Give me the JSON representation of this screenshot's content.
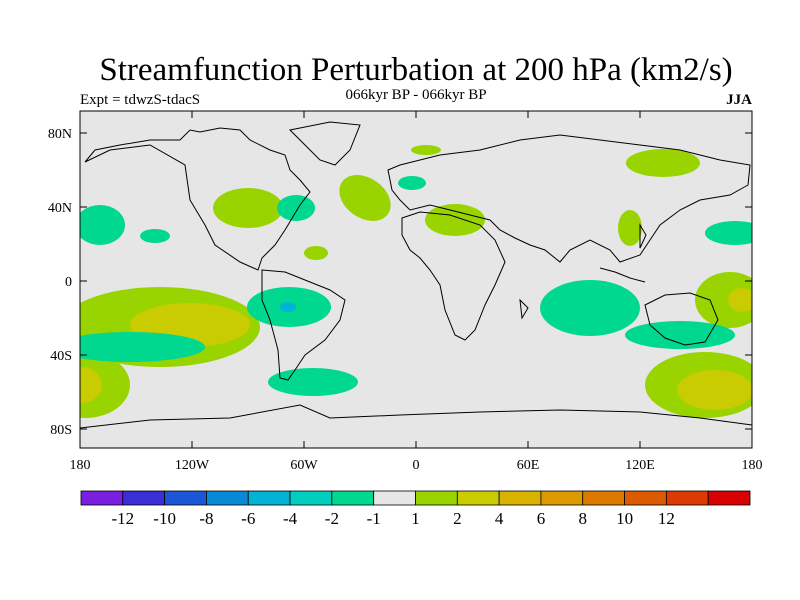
{
  "title": "Streamfunction Perturbation at 200 hPa (km2/s)",
  "experiment_label": "Expt = tdwzS-tdacS",
  "period_label": "066kyr BP - 066kyr BP",
  "season_label": "JJA",
  "axes": {
    "lon_ticks": [
      "180",
      "120W",
      "60W",
      "0",
      "60E",
      "120E",
      "180"
    ],
    "lat_ticks": [
      "80N",
      "40N",
      "0",
      "40S",
      "80S"
    ]
  },
  "colorbar": {
    "colors": [
      "#7a1fe0",
      "#3a2fd6",
      "#1a56d6",
      "#0a88d8",
      "#00b3d6",
      "#00cfc0",
      "#00d890",
      "#e6e6e6",
      "#99d400",
      "#c8cc00",
      "#d8b400",
      "#dc9a00",
      "#dc7a00",
      "#dc5a00",
      "#dc3a00",
      "#d80000"
    ],
    "labels": [
      "-12",
      "-10",
      "-8",
      "-6",
      "-4",
      "-2",
      "-1",
      "1",
      "2",
      "4",
      "6",
      "8",
      "10",
      "12"
    ]
  },
  "map": {
    "background": "#e6e6e6",
    "fill_colors": {
      "positive_light": "#99d400",
      "positive_mid": "#c8cc00",
      "negative_light": "#00d890",
      "negative_mid": "#00cfc0"
    }
  }
}
